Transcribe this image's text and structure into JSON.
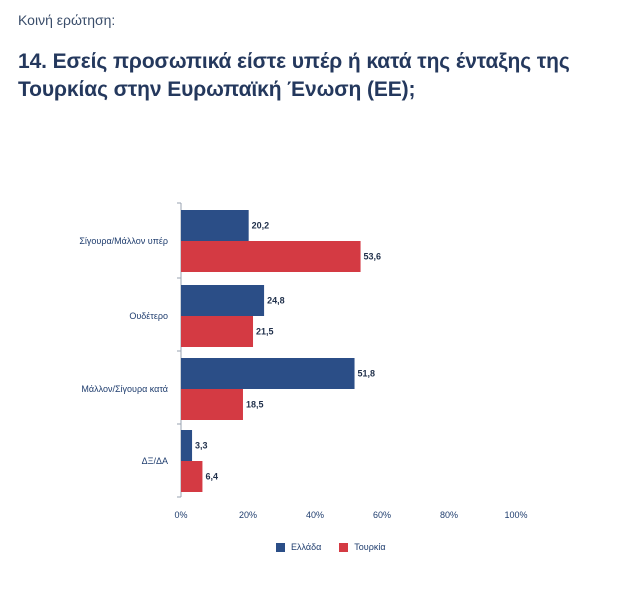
{
  "header": {
    "kicker": "Κοινή ερώτηση:",
    "title": "14. Εσείς προσωπικά είστε υπέρ ή κατά της ένταξης της Τουρκίας στην Ευρωπαϊκή Ένωση (ΕΕ);"
  },
  "colors": {
    "series_1": "#2b4e87",
    "series_2": "#d43a43"
  },
  "chart_data": {
    "type": "bar",
    "orientation": "horizontal",
    "categories": [
      "Σίγουρα/Μάλλον υπέρ",
      "Ουδέτερο",
      "Μάλλον/Σίγουρα κατά",
      "ΔΞ/ΔΑ"
    ],
    "series": [
      {
        "name": "Ελλάδα",
        "values": [
          20.2,
          24.8,
          51.8,
          3.3
        ],
        "labels": [
          "20,2",
          "24,8",
          "51,8",
          "3,3"
        ]
      },
      {
        "name": "Τουρκία",
        "values": [
          53.6,
          21.5,
          18.5,
          6.4
        ],
        "labels": [
          "53,6",
          "21,5",
          "18,5",
          "6,4"
        ]
      }
    ],
    "x_ticks": [
      "0%",
      "20%",
      "40%",
      "60%",
      "80%",
      "100%"
    ],
    "xlim": [
      0,
      100
    ],
    "grid": false,
    "legend_position": "bottom"
  }
}
